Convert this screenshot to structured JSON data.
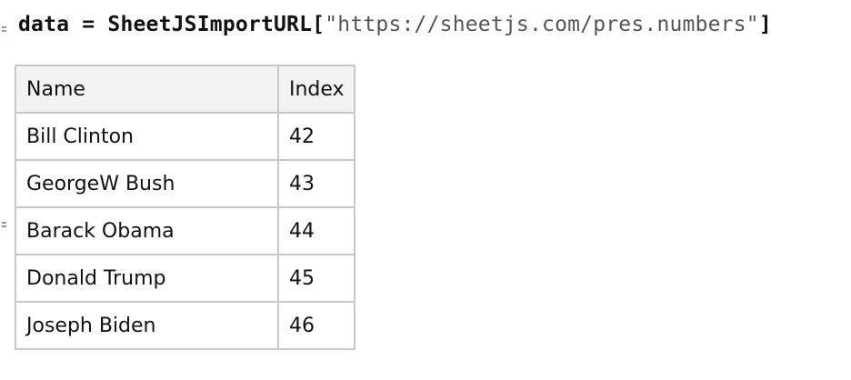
{
  "input": {
    "variable": "data",
    "operator": "=",
    "function": "SheetJSImportURL",
    "argument": "\"https://sheetjs.com/pres.numbers\""
  },
  "table": {
    "headers": [
      "Name",
      "Index"
    ],
    "rows": [
      [
        "Bill Clinton",
        "42"
      ],
      [
        "GeorgeW Bush",
        "43"
      ],
      [
        "Barack Obama",
        "44"
      ],
      [
        "Donald Trump",
        "45"
      ],
      [
        "Joseph Biden",
        "46"
      ]
    ]
  }
}
